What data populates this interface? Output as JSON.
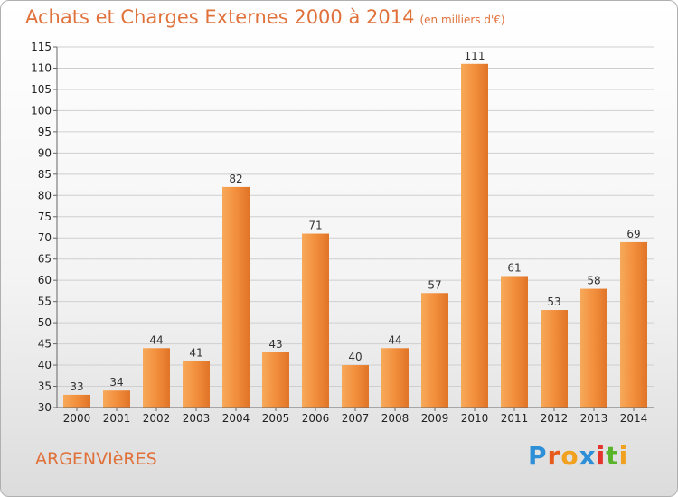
{
  "title": "Achats et Charges Externes 2000 à 2014",
  "subtitle": "(en milliers d'€)",
  "commune": "ARGENVIèRES",
  "logo": {
    "letters": [
      "P",
      "r",
      "o",
      "x",
      "i",
      "t",
      "i"
    ],
    "colors": [
      "#2d8fd8",
      "#e85a1c",
      "#f2a11f",
      "#2d8fd8",
      "#e4352c",
      "#59b42a",
      "#f2a11f"
    ]
  },
  "colors": {
    "bar": "#f2913f",
    "title": "#e0713a"
  },
  "chart_data": {
    "type": "bar",
    "categories": [
      "2000",
      "2001",
      "2002",
      "2003",
      "2004",
      "2005",
      "2006",
      "2007",
      "2008",
      "2009",
      "2010",
      "2011",
      "2012",
      "2013",
      "2014"
    ],
    "values": [
      33,
      34,
      44,
      41,
      82,
      43,
      71,
      40,
      44,
      57,
      111,
      61,
      53,
      58,
      69
    ],
    "ylim": [
      30,
      115
    ],
    "yticks": [
      30,
      35,
      40,
      45,
      50,
      55,
      60,
      65,
      70,
      75,
      80,
      85,
      90,
      95,
      100,
      105,
      110,
      115
    ],
    "grid": true,
    "title": "Achats et Charges Externes 2000 à 2014",
    "subtitle": "(en milliers d'€)"
  }
}
